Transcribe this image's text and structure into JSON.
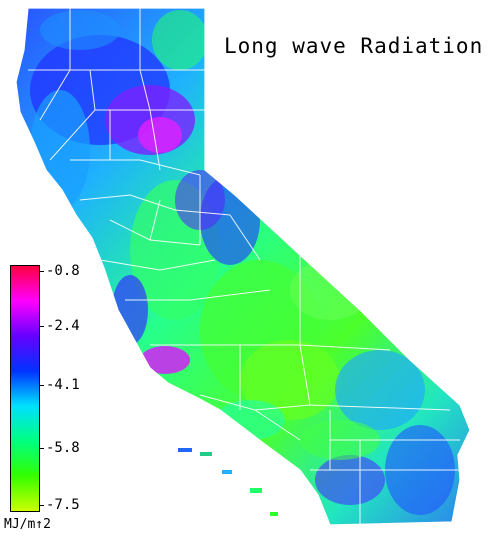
{
  "title": "Long wave Radiation",
  "legend": {
    "ticks": [
      "-0.8",
      "-2.4",
      "-4.1",
      "-5.8",
      "-7.5"
    ],
    "units": "MJ/m↑2",
    "colors": [
      "#ff0040",
      "#ff00ff",
      "#6600ff",
      "#0033ff",
      "#00e0ff",
      "#00ff80",
      "#33ff00",
      "#ccff00"
    ]
  },
  "map": {
    "region": "California",
    "boundaries": "counties",
    "boundary_color": "#ffffff"
  }
}
